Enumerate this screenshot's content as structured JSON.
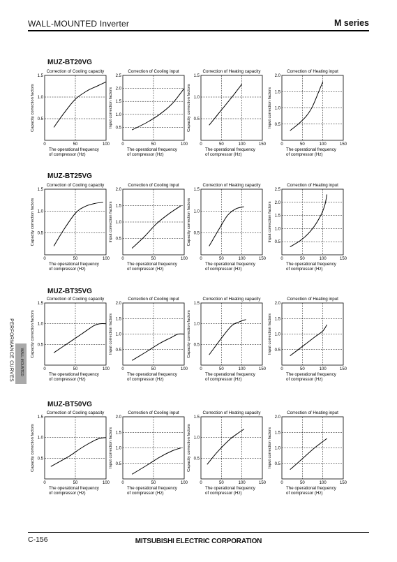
{
  "header": {
    "title": "WALL-MOUNTED Inverter",
    "series": "M series"
  },
  "side": {
    "label": "PERFORMANCE CURVES",
    "tab": "WALL-MOUNTED"
  },
  "footer": {
    "page": "C-156",
    "corporation": "MITSUBISHI ELECTRIC CORPORATION"
  },
  "chart_data": [
    {
      "type": "line",
      "model": "MUZ-BT20VG",
      "title": "Correction of Cooling capacity",
      "ylabel": "Capacity correction factors",
      "xlabel": "The operational frequency of compressor (Hz)",
      "xlim": [
        0,
        100
      ],
      "ylim": [
        0,
        1.5
      ],
      "xticks": [
        0,
        50,
        100
      ],
      "yticks": [
        0.5,
        1.0,
        1.5
      ],
      "grid": "dashed",
      "x": [
        15,
        30,
        50,
        70,
        85,
        100
      ],
      "y": [
        0.3,
        0.6,
        0.95,
        1.15,
        1.25,
        1.35
      ]
    },
    {
      "type": "line",
      "model": "MUZ-BT20VG",
      "title": "Correction of Cooling input",
      "ylabel": "Input correction factors",
      "xlabel": "The operational frequency of compressor (Hz)",
      "xlim": [
        0,
        100
      ],
      "ylim": [
        0,
        2.5
      ],
      "xticks": [
        0,
        50,
        100
      ],
      "yticks": [
        0.5,
        1.0,
        1.5,
        2.0,
        2.5
      ],
      "grid": "dashed",
      "x": [
        15,
        40,
        60,
        80,
        100
      ],
      "y": [
        0.4,
        0.7,
        1.0,
        1.4,
        2.0
      ]
    },
    {
      "type": "line",
      "model": "MUZ-BT20VG",
      "title": "Correction of Heating capacity",
      "ylabel": "Capacity correction factors",
      "xlabel": "The operational frequency of compressor (Hz)",
      "xlim": [
        0,
        150
      ],
      "ylim": [
        0,
        1.5
      ],
      "xticks": [
        0,
        50,
        100,
        150
      ],
      "yticks": [
        0.5,
        1.0,
        1.5
      ],
      "grid": "dashed",
      "x": [
        20,
        50,
        80,
        100
      ],
      "y": [
        0.35,
        0.7,
        1.05,
        1.3
      ]
    },
    {
      "type": "line",
      "model": "MUZ-BT20VG",
      "title": "Correction of Heating input",
      "ylabel": "Input correction factors",
      "xlabel": "The operational frequency of compressor (Hz)",
      "xlim": [
        0,
        150
      ],
      "ylim": [
        0,
        2.0
      ],
      "xticks": [
        0,
        50,
        100,
        150
      ],
      "yticks": [
        0.5,
        1.0,
        1.5,
        2.0
      ],
      "grid": "dashed",
      "x": [
        20,
        40,
        60,
        75,
        90,
        100
      ],
      "y": [
        0.3,
        0.5,
        0.75,
        1.05,
        1.5,
        1.8
      ]
    },
    {
      "type": "line",
      "model": "MUZ-BT25VG",
      "title": "Correction of Cooling capacity",
      "ylabel": "Capacity correction factors",
      "xlabel": "The operational frequency of compressor (Hz)",
      "xlim": [
        0,
        100
      ],
      "ylim": [
        0,
        1.5
      ],
      "xticks": [
        0,
        50,
        100
      ],
      "yticks": [
        0.5,
        1.0,
        1.5
      ],
      "grid": "dashed",
      "x": [
        15,
        30,
        50,
        65,
        80,
        95
      ],
      "y": [
        0.2,
        0.55,
        0.95,
        1.1,
        1.17,
        1.2
      ]
    },
    {
      "type": "line",
      "model": "MUZ-BT25VG",
      "title": "Correction of Cooling input",
      "ylabel": "Input correction factors",
      "xlabel": "The operational frequency of compressor (Hz)",
      "xlim": [
        0,
        100
      ],
      "ylim": [
        0,
        2.0
      ],
      "xticks": [
        0,
        50,
        100
      ],
      "yticks": [
        0.5,
        1.0,
        1.5,
        2.0
      ],
      "grid": "dashed",
      "x": [
        15,
        35,
        55,
        75,
        95
      ],
      "y": [
        0.2,
        0.55,
        0.95,
        1.25,
        1.5
      ]
    },
    {
      "type": "line",
      "model": "MUZ-BT25VG",
      "title": "Correction of Heating capacity",
      "ylabel": "Capacity correction factors",
      "xlabel": "The operational frequency of compressor (Hz)",
      "xlim": [
        0,
        150
      ],
      "ylim": [
        0,
        1.5
      ],
      "xticks": [
        0,
        50,
        100,
        150
      ],
      "yticks": [
        0.5,
        1.0,
        1.5
      ],
      "grid": "dashed",
      "x": [
        20,
        45,
        65,
        85,
        105
      ],
      "y": [
        0.2,
        0.6,
        0.9,
        1.05,
        1.1
      ]
    },
    {
      "type": "line",
      "model": "MUZ-BT25VG",
      "title": "Correction of Heating input",
      "ylabel": "Input correction factors",
      "xlabel": "The operational frequency of compressor (Hz)",
      "xlim": [
        0,
        150
      ],
      "ylim": [
        0,
        2.5
      ],
      "xticks": [
        0,
        50,
        100,
        150
      ],
      "yticks": [
        0.5,
        1.0,
        1.5,
        2.0,
        2.5
      ],
      "grid": "dashed",
      "x": [
        20,
        50,
        75,
        95,
        105,
        110
      ],
      "y": [
        0.3,
        0.6,
        1.0,
        1.5,
        1.9,
        2.3
      ]
    },
    {
      "type": "line",
      "model": "MUZ-BT35VG",
      "title": "Correction of Cooling capacity",
      "ylabel": "Capacity correction factors",
      "xlabel": "The operational frequency of compressor (Hz)",
      "xlim": [
        0,
        100
      ],
      "ylim": [
        0,
        1.5
      ],
      "xticks": [
        0,
        50,
        100
      ],
      "yticks": [
        0.5,
        1.0,
        1.5
      ],
      "grid": "dashed",
      "x": [
        15,
        40,
        60,
        80,
        90,
        100
      ],
      "y": [
        0.3,
        0.55,
        0.75,
        0.95,
        1.0,
        1.0
      ]
    },
    {
      "type": "line",
      "model": "MUZ-BT35VG",
      "title": "Correction of Cooling input",
      "ylabel": "Input correction factors",
      "xlabel": "The operational frequency of compressor (Hz)",
      "xlim": [
        0,
        100
      ],
      "ylim": [
        0,
        2.0
      ],
      "xticks": [
        0,
        50,
        100
      ],
      "yticks": [
        0.5,
        1.0,
        1.5,
        2.0
      ],
      "grid": "dashed",
      "x": [
        15,
        40,
        60,
        80,
        90,
        100
      ],
      "y": [
        0.15,
        0.45,
        0.7,
        0.9,
        1.0,
        1.0
      ]
    },
    {
      "type": "line",
      "model": "MUZ-BT35VG",
      "title": "Correction of Heating capacity",
      "ylabel": "Capacity correction factors",
      "xlabel": "The operational frequency of compressor (Hz)",
      "xlim": [
        0,
        150
      ],
      "ylim": [
        0,
        1.5
      ],
      "xticks": [
        0,
        50,
        100,
        150
      ],
      "yticks": [
        0.5,
        1.0,
        1.5
      ],
      "grid": "dashed",
      "x": [
        20,
        50,
        75,
        95,
        110
      ],
      "y": [
        0.25,
        0.65,
        0.95,
        1.05,
        1.1
      ]
    },
    {
      "type": "line",
      "model": "MUZ-BT35VG",
      "title": "Correction of Heating input",
      "ylabel": "Input correction factors",
      "xlabel": "The operational frequency of compressor (Hz)",
      "xlim": [
        0,
        150
      ],
      "ylim": [
        0,
        2.0
      ],
      "xticks": [
        0,
        50,
        100,
        150
      ],
      "yticks": [
        0.5,
        1.0,
        1.5,
        2.0
      ],
      "grid": "dashed",
      "x": [
        20,
        50,
        80,
        100,
        110
      ],
      "y": [
        0.3,
        0.6,
        0.9,
        1.1,
        1.3
      ]
    },
    {
      "type": "line",
      "model": "MUZ-BT50VG",
      "title": "Correction of Cooling capacity",
      "ylabel": "Capacity correction factors",
      "xlabel": "The operational frequency of compressor (Hz)",
      "xlim": [
        0,
        100
      ],
      "ylim": [
        0,
        1.5
      ],
      "xticks": [
        0,
        50,
        100
      ],
      "yticks": [
        0.5,
        1.0,
        1.5
      ],
      "grid": "dashed",
      "x": [
        10,
        40,
        60,
        80,
        90,
        100
      ],
      "y": [
        0.3,
        0.55,
        0.75,
        0.92,
        0.98,
        1.0
      ]
    },
    {
      "type": "line",
      "model": "MUZ-BT50VG",
      "title": "Correction of Cooling input",
      "ylabel": "Input correction factors",
      "xlabel": "The operational frequency of compressor (Hz)",
      "xlim": [
        0,
        100
      ],
      "ylim": [
        0,
        2.0
      ],
      "xticks": [
        0,
        50,
        100
      ],
      "yticks": [
        0.5,
        1.0,
        1.5,
        2.0
      ],
      "grid": "dashed",
      "x": [
        15,
        40,
        60,
        80,
        95
      ],
      "y": [
        0.15,
        0.45,
        0.7,
        0.9,
        1.0
      ]
    },
    {
      "type": "line",
      "model": "MUZ-BT50VG",
      "title": "Correction of Heating capacity",
      "ylabel": "Capacity correction factors",
      "xlabel": "The operational frequency of compressor (Hz)",
      "xlim": [
        0,
        150
      ],
      "ylim": [
        0,
        1.5
      ],
      "xticks": [
        0,
        50,
        100,
        150
      ],
      "yticks": [
        0.5,
        1.0,
        1.5
      ],
      "grid": "dashed",
      "x": [
        15,
        40,
        70,
        90,
        105
      ],
      "y": [
        0.35,
        0.65,
        0.95,
        1.1,
        1.2
      ]
    },
    {
      "type": "line",
      "model": "MUZ-BT50VG",
      "title": "Correction of Heating input",
      "ylabel": "Input correction factors",
      "xlabel": "The operational frequency of compressor (Hz)",
      "xlim": [
        0,
        150
      ],
      "ylim": [
        0,
        2.0
      ],
      "xticks": [
        0,
        50,
        100,
        150
      ],
      "yticks": [
        0.5,
        1.0,
        1.5,
        2.0
      ],
      "grid": "dashed",
      "x": [
        20,
        50,
        80,
        110
      ],
      "y": [
        0.3,
        0.65,
        1.0,
        1.3
      ]
    }
  ]
}
